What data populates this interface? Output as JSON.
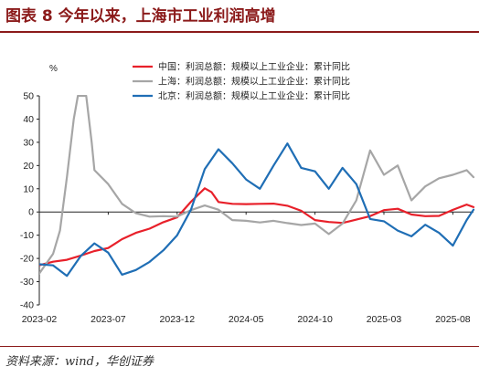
{
  "header": {
    "title": "图表 8   今年以来，上海市工业利润高增"
  },
  "footer": {
    "source": "资料来源：wind，华创证券"
  },
  "chart_data": {
    "type": "line",
    "title": "",
    "xlabel": "",
    "ylabel": "%",
    "ylim": [
      -40,
      50
    ],
    "yticks": [
      50,
      40,
      30,
      20,
      10,
      0,
      -10,
      -20,
      -30,
      -40
    ],
    "x_tick_labels": [
      "2023-02",
      "2023-07",
      "2023-12",
      "2024-05",
      "2024-10",
      "2025-03",
      "2025-08"
    ],
    "x_tick_months": [
      0,
      5,
      10,
      15,
      20,
      25,
      30
    ],
    "x_range_months": [
      0,
      31.5
    ],
    "legend_position": "top-right",
    "grid": false,
    "series": [
      {
        "name": "中国：利润总额：规模以上工业企业：累计同比",
        "color": "#e8202a",
        "points": [
          [
            0,
            -22.9
          ],
          [
            1,
            -21.4
          ],
          [
            2,
            -20.6
          ],
          [
            3,
            -18.8
          ],
          [
            4,
            -16.8
          ],
          [
            5,
            -15.5
          ],
          [
            6,
            -11.7
          ],
          [
            7,
            -9.0
          ],
          [
            8,
            -7.2
          ],
          [
            9,
            -4.4
          ],
          [
            10,
            -2.3
          ],
          [
            11,
            4.4
          ],
          [
            12,
            10.2
          ],
          [
            12.5,
            8.5
          ],
          [
            13,
            4.3
          ],
          [
            14,
            3.5
          ],
          [
            15,
            3.4
          ],
          [
            16,
            3.5
          ],
          [
            17,
            3.6
          ],
          [
            18,
            2.7
          ],
          [
            19,
            0.5
          ],
          [
            20,
            -3.5
          ],
          [
            21,
            -4.3
          ],
          [
            22,
            -4.7
          ],
          [
            23,
            -3.3
          ],
          [
            24,
            -1.8
          ],
          [
            25,
            0.8
          ],
          [
            26,
            1.4
          ],
          [
            27,
            -1.1
          ],
          [
            28,
            -1.8
          ],
          [
            29,
            -1.7
          ],
          [
            30,
            0.9
          ],
          [
            31,
            3.2
          ],
          [
            31.5,
            2.1
          ]
        ]
      },
      {
        "name": "上海：利润总额：规模以上工业企业：累计同比",
        "color": "#a6a6a6",
        "points": [
          [
            0,
            -26.5
          ],
          [
            1,
            -18.0
          ],
          [
            1.5,
            -8.0
          ],
          [
            2,
            15.0
          ],
          [
            2.5,
            40.0
          ],
          [
            2.8,
            50.0
          ],
          [
            3.4,
            50.0
          ],
          [
            3.8,
            30.0
          ],
          [
            4,
            18.0
          ],
          [
            5,
            12.0
          ],
          [
            6,
            3.5
          ],
          [
            7,
            -0.5
          ],
          [
            8,
            -2.0
          ],
          [
            9,
            -1.8
          ],
          [
            10,
            -2.0
          ],
          [
            11,
            0.8
          ],
          [
            12,
            2.8
          ],
          [
            13,
            1.0
          ],
          [
            14,
            -3.5
          ],
          [
            15,
            -3.8
          ],
          [
            16,
            -4.5
          ],
          [
            17,
            -3.8
          ],
          [
            18,
            -4.8
          ],
          [
            19,
            -5.6
          ],
          [
            20,
            -5.0
          ],
          [
            21,
            -9.5
          ],
          [
            22,
            -5.0
          ],
          [
            23,
            5.0
          ],
          [
            24,
            26.5
          ],
          [
            25,
            16.0
          ],
          [
            26,
            20.0
          ],
          [
            27,
            5.0
          ],
          [
            28,
            11.0
          ],
          [
            29,
            14.5
          ],
          [
            30,
            16.0
          ],
          [
            31,
            18.0
          ],
          [
            31.5,
            15.0
          ]
        ]
      },
      {
        "name": "北京：利润总额：规模以上工业企业：累计同比",
        "color": "#1f6eb5",
        "points": [
          [
            0,
            -22.5
          ],
          [
            1,
            -23.0
          ],
          [
            2,
            -27.5
          ],
          [
            3,
            -19.0
          ],
          [
            4,
            -13.5
          ],
          [
            5,
            -17.5
          ],
          [
            6,
            -27.0
          ],
          [
            7,
            -25.0
          ],
          [
            8,
            -21.5
          ],
          [
            9,
            -16.5
          ],
          [
            10,
            -10.0
          ],
          [
            11,
            1.0
          ],
          [
            12,
            18.5
          ],
          [
            13,
            27.0
          ],
          [
            14,
            21.0
          ],
          [
            15,
            14.0
          ],
          [
            16,
            10.0
          ],
          [
            17,
            20.0
          ],
          [
            18,
            29.5
          ],
          [
            19,
            19.0
          ],
          [
            20,
            17.5
          ],
          [
            21,
            10.0
          ],
          [
            22,
            19.0
          ],
          [
            23,
            12.0
          ],
          [
            24,
            -3.0
          ],
          [
            25,
            -4.0
          ],
          [
            26,
            -8.0
          ],
          [
            27,
            -10.5
          ],
          [
            28,
            -5.5
          ],
          [
            29,
            -9.0
          ],
          [
            30,
            -14.5
          ],
          [
            31,
            -3.5
          ],
          [
            31.5,
            1.0
          ]
        ]
      }
    ]
  }
}
